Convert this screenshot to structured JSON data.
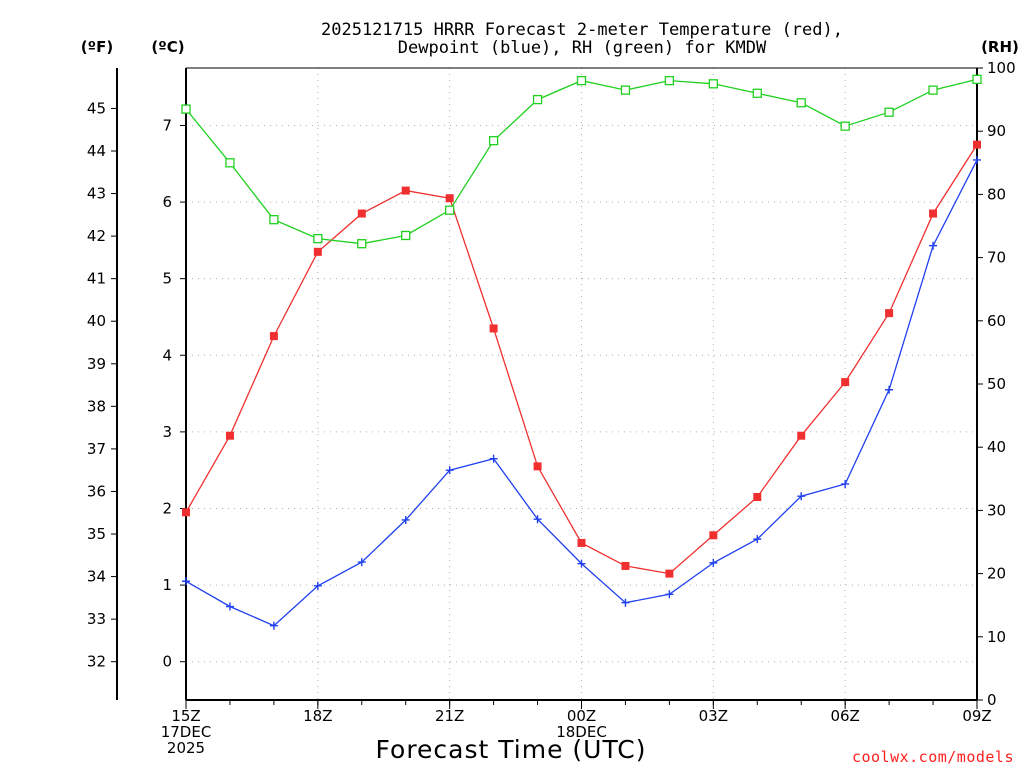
{
  "chart_data": {
    "type": "line",
    "title_line1": "2025121715 HRRR Forecast 2-meter Temperature (red),",
    "title_line2": "Dewpoint (blue), RH (green) for KMDW",
    "xlabel": "Forecast Time (UTC)",
    "credit": "coolwx.com/models",
    "unit_f": "(ºF)",
    "unit_c": "(ºC)",
    "unit_rh": "(RH)",
    "x_hours": [
      0,
      1,
      2,
      3,
      4,
      5,
      6,
      7,
      8,
      9,
      10,
      11,
      12,
      13,
      14,
      15,
      16,
      17,
      18
    ],
    "xlim": [
      0,
      18
    ],
    "x_ticks": [
      {
        "hour": 0,
        "lines": [
          "15Z",
          "17DEC",
          "2025"
        ]
      },
      {
        "hour": 3,
        "lines": [
          "18Z"
        ]
      },
      {
        "hour": 6,
        "lines": [
          "21Z"
        ]
      },
      {
        "hour": 9,
        "lines": [
          "00Z",
          "18DEC"
        ]
      },
      {
        "hour": 12,
        "lines": [
          "03Z"
        ]
      },
      {
        "hour": 15,
        "lines": [
          "06Z"
        ]
      },
      {
        "hour": 18,
        "lines": [
          "09Z"
        ]
      }
    ],
    "ylim_c": [
      -0.5,
      7.75
    ],
    "c_ticks": [
      "0",
      "1",
      "2",
      "3",
      "4",
      "5",
      "6",
      "7"
    ],
    "f_ticks": [
      "32",
      "33",
      "34",
      "35",
      "36",
      "37",
      "38",
      "39",
      "40",
      "41",
      "42",
      "43",
      "44",
      "45"
    ],
    "ylim_rh": [
      0,
      100
    ],
    "rh_ticks": [
      "0",
      "10",
      "20",
      "30",
      "40",
      "50",
      "60",
      "70",
      "80",
      "90",
      "100"
    ],
    "series": [
      {
        "name": "Temperature",
        "axis": "c",
        "color": "#f03030",
        "marker": "filled-square",
        "values": [
          1.95,
          2.95,
          4.25,
          5.35,
          5.85,
          6.15,
          6.05,
          4.35,
          2.55,
          1.55,
          1.25,
          1.15,
          1.65,
          2.15,
          2.95,
          3.65,
          4.55,
          5.85,
          6.75
        ]
      },
      {
        "name": "Dewpoint",
        "axis": "c",
        "color": "#2040f0",
        "marker": "plus",
        "values": [
          1.05,
          0.72,
          0.47,
          0.99,
          1.3,
          1.85,
          2.5,
          2.65,
          1.86,
          1.28,
          0.77,
          0.88,
          1.29,
          1.6,
          2.16,
          2.32,
          3.55,
          5.43,
          6.55
        ]
      },
      {
        "name": "RH",
        "axis": "rh",
        "color": "#20d020",
        "marker": "open-square",
        "values": [
          93.5,
          85,
          76,
          73,
          72.2,
          73.5,
          77.5,
          88.5,
          95,
          98,
          96.5,
          98,
          97.5,
          96,
          94.5,
          90.8,
          93,
          96.5,
          98.2
        ]
      }
    ]
  }
}
